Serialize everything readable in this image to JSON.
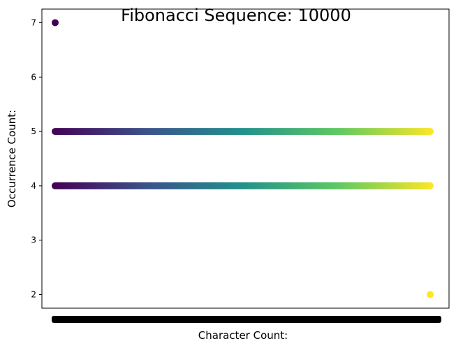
{
  "chart_data": {
    "type": "scatter",
    "title": "Fibonacci Sequence: 10000",
    "xlabel": "Character Count:",
    "ylabel": "Occurrence Count:",
    "x_axis": {
      "kind": "categorical-dense",
      "tick_labels_visible": false,
      "note": "x tick labels overlap into a solid black band"
    },
    "ylim": [
      1.75,
      7.25
    ],
    "yticks": [
      2,
      3,
      4,
      5,
      6,
      7
    ],
    "grid": false,
    "legend": "none",
    "colormap": "viridis",
    "colormap_stops": [
      "#440154",
      "#3b528b",
      "#21918c",
      "#5ec962",
      "#fde725"
    ],
    "points_isolated": [
      {
        "x": 0.0,
        "y": 7,
        "color": "#440154"
      },
      {
        "x": 1.0,
        "y": 2,
        "color": "#fde725"
      }
    ],
    "bands": [
      {
        "y": 5,
        "x_start": 0.0,
        "x_end": 1.0
      },
      {
        "y": 4,
        "x_start": 0.0,
        "x_end": 1.0
      }
    ]
  }
}
